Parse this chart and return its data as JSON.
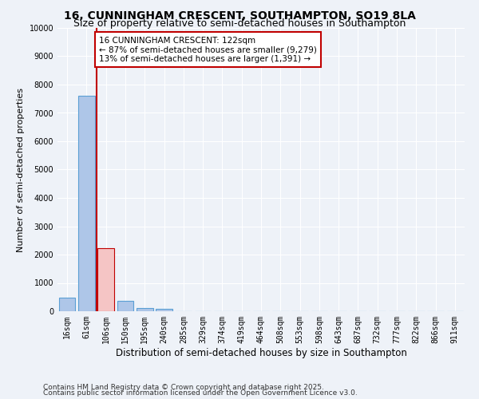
{
  "title": "16, CUNNINGHAM CRESCENT, SOUTHAMPTON, SO19 8LA",
  "subtitle": "Size of property relative to semi-detached houses in Southampton",
  "xlabel": "Distribution of semi-detached houses by size in Southampton",
  "ylabel": "Number of semi-detached properties",
  "property_label": "16 CUNNINGHAM CRESCENT: 122sqm",
  "pct_smaller": 87,
  "n_smaller": 9279,
  "pct_larger": 13,
  "n_larger": 1391,
  "bar_color": "#aec6e8",
  "bar_edge_color": "#5a9fd4",
  "highlight_bar_color": "#f5c5c5",
  "highlight_bar_edge_color": "#c00000",
  "vline_color": "#c00000",
  "annotation_box_color": "#c00000",
  "background_color": "#eef2f8",
  "grid_color": "#ffffff",
  "categories": [
    "16sqm",
    "61sqm",
    "106sqm",
    "150sqm",
    "195sqm",
    "240sqm",
    "285sqm",
    "329sqm",
    "374sqm",
    "419sqm",
    "464sqm",
    "508sqm",
    "553sqm",
    "598sqm",
    "643sqm",
    "687sqm",
    "732sqm",
    "777sqm",
    "822sqm",
    "866sqm",
    "911sqm"
  ],
  "values": [
    470,
    7600,
    2220,
    380,
    120,
    80,
    0,
    0,
    0,
    0,
    0,
    0,
    0,
    0,
    0,
    0,
    0,
    0,
    0,
    0,
    0
  ],
  "highlight_index": 2,
  "ylim": [
    0,
    10000
  ],
  "yticks": [
    0,
    1000,
    2000,
    3000,
    4000,
    5000,
    6000,
    7000,
    8000,
    9000,
    10000
  ],
  "footnote1": "Contains HM Land Registry data © Crown copyright and database right 2025.",
  "footnote2": "Contains public sector information licensed under the Open Government Licence v3.0.",
  "title_fontsize": 10,
  "subtitle_fontsize": 9,
  "xlabel_fontsize": 8.5,
  "ylabel_fontsize": 8,
  "tick_fontsize": 7,
  "footnote_fontsize": 6.5,
  "annotation_fontsize": 7.5
}
